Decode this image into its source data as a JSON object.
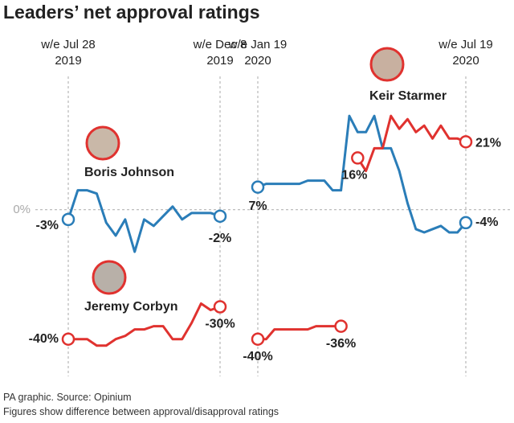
{
  "title": "Leaders’ net approval ratings",
  "chart_data": [
    {
      "type": "line",
      "categories": [
        "w/e Jul 28\n2019",
        null,
        null,
        null,
        null,
        null,
        null,
        null,
        null,
        null,
        null,
        null,
        null,
        null,
        null,
        null,
        "w/e Dec 8\n2019"
      ],
      "ylim": [
        -52,
        35
      ],
      "yticks": [
        {
          "value": 0,
          "label": "0%"
        }
      ],
      "series": [
        {
          "name": "Boris Johnson",
          "color": "#2a7db8",
          "values": [
            -3,
            6,
            6,
            5,
            -4,
            -8,
            -3,
            -13,
            -3,
            -5,
            -2,
            1,
            -3,
            -1,
            -1,
            -1,
            -2
          ],
          "value_labels": [
            "-3%",
            null,
            null,
            null,
            null,
            null,
            null,
            null,
            null,
            null,
            null,
            null,
            null,
            null,
            null,
            null,
            "-2%"
          ]
        },
        {
          "name": "Jeremy Corbyn",
          "color": "#e0322f",
          "values": [
            -40,
            -40,
            -40,
            -42,
            -42,
            -40,
            -39,
            -37,
            -37,
            -36,
            -36,
            -40,
            -40,
            -35,
            -29,
            -31,
            -30
          ],
          "value_labels": [
            "-40%",
            null,
            null,
            null,
            null,
            null,
            null,
            null,
            null,
            null,
            null,
            null,
            null,
            null,
            null,
            null,
            "-30%"
          ]
        }
      ]
    },
    {
      "type": "line",
      "categories": [
        "w/e Jan 19\n2020",
        null,
        null,
        null,
        null,
        null,
        null,
        null,
        null,
        null,
        null,
        null,
        null,
        null,
        null,
        null,
        null,
        null,
        null,
        null,
        null,
        null,
        null,
        null,
        null,
        "w/e Jul 19\n2020"
      ],
      "ylim": [
        -52,
        35
      ],
      "series": [
        {
          "color": "#2a7db8",
          "values": [
            7,
            8,
            8,
            8,
            8,
            8,
            9,
            9,
            9,
            6,
            6,
            29,
            24,
            24,
            29,
            19,
            19,
            12,
            2,
            -6,
            -7,
            -6,
            -5,
            -7,
            -7,
            -4
          ],
          "value_labels": [
            "7%",
            null,
            null,
            null,
            null,
            null,
            null,
            null,
            null,
            null,
            null,
            null,
            null,
            null,
            null,
            null,
            null,
            null,
            null,
            null,
            null,
            null,
            null,
            null,
            null,
            "-4%"
          ]
        },
        {
          "color": "#e0322f",
          "values": [
            -40,
            -40,
            -37,
            -37,
            -37,
            -37,
            -37,
            -36,
            -36,
            -36,
            -36,
            null,
            null,
            null,
            null,
            null,
            null,
            null,
            null,
            null,
            null,
            null,
            null,
            null,
            null,
            null
          ],
          "value_labels": [
            "-40%",
            null,
            null,
            null,
            null,
            null,
            null,
            null,
            null,
            null,
            "-36%",
            null,
            null,
            null,
            null,
            null,
            null,
            null,
            null,
            null,
            null,
            null,
            null,
            null,
            null,
            null
          ]
        },
        {
          "name": "Keir Starmer",
          "color": "#e0322f",
          "values": [
            null,
            null,
            null,
            null,
            null,
            null,
            null,
            null,
            null,
            null,
            null,
            null,
            16,
            12,
            19,
            19,
            29,
            25,
            28,
            24,
            26,
            22,
            26,
            22,
            22,
            21
          ],
          "value_labels": [
            null,
            null,
            null,
            null,
            null,
            null,
            null,
            null,
            null,
            null,
            null,
            null,
            "16%",
            null,
            null,
            null,
            null,
            null,
            null,
            null,
            null,
            null,
            null,
            null,
            null,
            "21%"
          ]
        }
      ]
    }
  ],
  "footer": [
    "PA graphic. Source: Opinium",
    "Figures show difference between approval/disapproval ratings"
  ]
}
